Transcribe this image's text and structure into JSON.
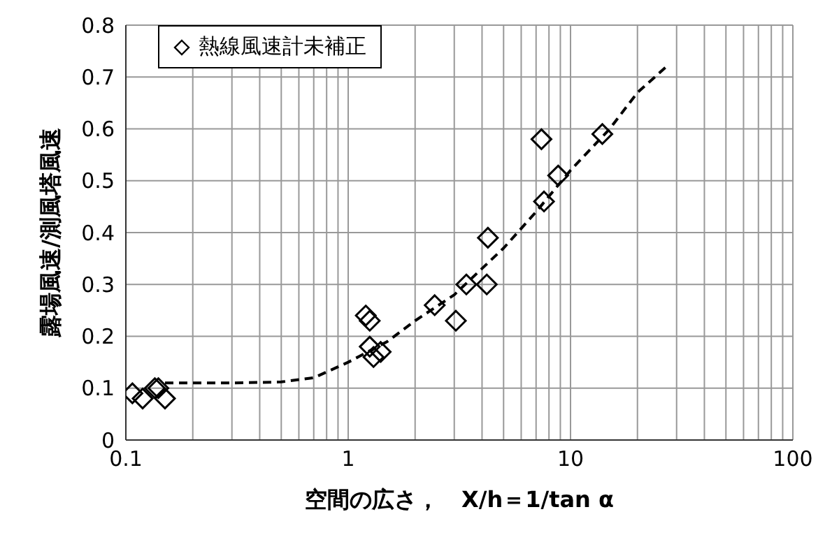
{
  "chart_data": {
    "type": "scatter",
    "xlabel": "空間の広さ，　X/h＝1/tan α",
    "ylabel": "露場風速/測風塔風速",
    "log": "x",
    "grid": true,
    "legend": "top left",
    "marker": "diamond",
    "xlim": [
      0.1,
      100
    ],
    "ylim": [
      0,
      0.8
    ],
    "xticks": [
      0.1,
      {
        "value": 0.2,
        "label": null
      },
      {
        "value": 0.3,
        "label": null
      },
      {
        "value": 0.4,
        "label": null
      },
      {
        "value": 0.5,
        "label": null
      },
      {
        "value": 0.6,
        "label": null
      },
      {
        "value": 0.7,
        "label": null
      },
      {
        "value": 0.8,
        "label": null
      },
      {
        "value": 0.9,
        "label": null
      },
      1,
      {
        "value": 2,
        "label": null
      },
      {
        "value": 3,
        "label": null
      },
      {
        "value": 4,
        "label": null
      },
      {
        "value": 5,
        "label": null
      },
      {
        "value": 6,
        "label": null
      },
      {
        "value": 7,
        "label": null
      },
      {
        "value": 8,
        "label": null
      },
      {
        "value": 9,
        "label": null
      },
      10,
      {
        "value": 20,
        "label": null
      },
      {
        "value": 30,
        "label": null
      },
      {
        "value": 40,
        "label": null
      },
      {
        "value": 50,
        "label": null
      },
      {
        "value": 60,
        "label": null
      },
      {
        "value": 70,
        "label": null
      },
      {
        "value": 80,
        "label": null
      },
      {
        "value": 90,
        "label": null
      },
      100
    ],
    "yticks": [
      0,
      0.1,
      0.2,
      0.3,
      0.4,
      0.5,
      0.6,
      0.7,
      0.8
    ],
    "series": [
      {
        "name": "熱線風速計未補正",
        "color": "#000000",
        "x": [
          0.107,
          0.119,
          0.135,
          0.14,
          0.15,
          1.2,
          1.25,
          1.25,
          1.3,
          1.4,
          2.45,
          3.05,
          3.4,
          4.2,
          4.25,
          7.4,
          7.6,
          8.8,
          13.9
        ],
        "values": [
          0.09,
          0.08,
          0.1,
          0.1,
          0.08,
          0.24,
          0.23,
          0.18,
          0.16,
          0.17,
          0.26,
          0.23,
          0.3,
          0.3,
          0.39,
          0.58,
          0.46,
          0.51,
          0.59
        ]
      },
      {
        "type": "line",
        "color": "#000000",
        "line_style": "dashed",
        "marker": "none",
        "x": [
          0.15,
          0.3,
          0.5,
          0.7,
          1,
          1.5,
          2,
          3,
          5,
          7,
          10,
          15,
          20,
          27
        ],
        "values": [
          0.11,
          0.11,
          0.112,
          0.12,
          0.15,
          0.19,
          0.23,
          0.28,
          0.37,
          0.44,
          0.52,
          0.6,
          0.67,
          0.72
        ]
      }
    ]
  }
}
